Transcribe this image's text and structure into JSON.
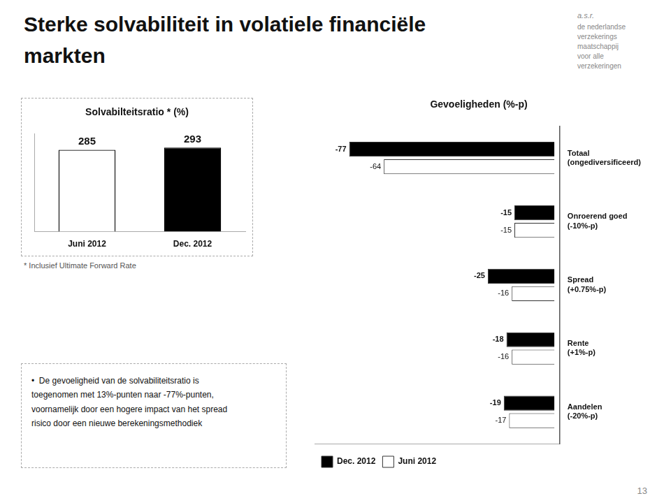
{
  "title": "Sterke solvabiliteit in volatiele financiële\nmarkten",
  "annotations": [
    "a.s.r.",
    "de nederlandse\nverzekerings\nmaatschappij\nvoor alle\nverzekeringen",
    "* Inclusief Ultimate Forward Rate",
    "•  De gevoeligheid van de solvabiliteitsratio is\ntoegenomen met 13%-punten naar -77%-punten,\nvoornamelijk door een hogere impact van het spread\nrisico door een nieuwe berekeningsmethodiek",
    "13"
  ],
  "chart_data": [
    {
      "type": "bar",
      "title": "Solvabilteitsratio * (%)",
      "categories": [
        "Juni 2012",
        "Dec. 2012"
      ],
      "values": [
        285,
        293
      ],
      "colors": [
        "#ffffff",
        "#000000"
      ],
      "ylim": [
        0,
        340
      ],
      "tick_labels": "x",
      "grid": false,
      "data_labels": true
    },
    {
      "type": "bar",
      "title": "Gevoeligheden (%-p)",
      "orientation": "horizontal",
      "categories": [
        "Totaal\n(ongediversificeerd)",
        "Onroerend goed\n(-10%-p)",
        "Spread\n(+0.75%-p)",
        "Rente\n(+1%-p)",
        "Aandelen\n(-20%-p)"
      ],
      "series": [
        {
          "name": "Dec. 2012",
          "color": "#000000",
          "values": [
            -77,
            -15,
            -25,
            -18,
            -19
          ]
        },
        {
          "name": "Juni 2012",
          "color": "#ffffff",
          "values": [
            -64,
            -15,
            -16,
            -16,
            -17
          ]
        }
      ],
      "xlim": [
        -90,
        2
      ],
      "tick_labels": "y",
      "grid": false,
      "legend": "lower left",
      "data_labels": true
    }
  ]
}
